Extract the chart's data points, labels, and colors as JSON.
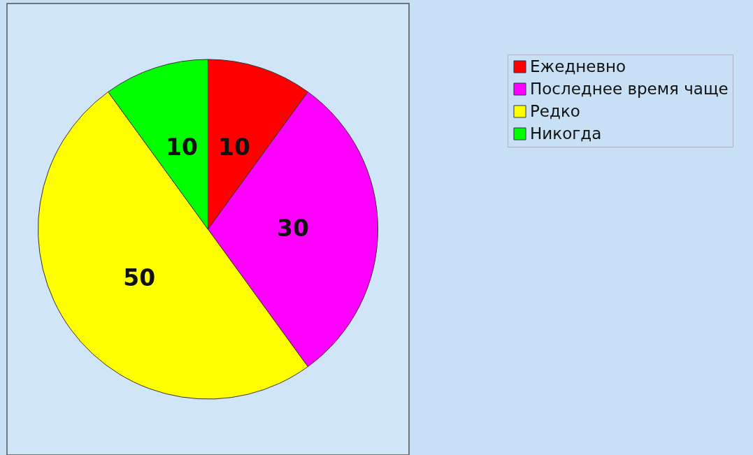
{
  "chart_data": {
    "type": "pie",
    "categories": [
      "Ежедневно",
      "Последнее время чаще",
      "Редко",
      "Никогда"
    ],
    "values": [
      10,
      30,
      50,
      10
    ],
    "colors": [
      "#ff0000",
      "#ff00ff",
      "#ffff00",
      "#00ff00"
    ],
    "data_labels": true,
    "legend": "right"
  }
}
